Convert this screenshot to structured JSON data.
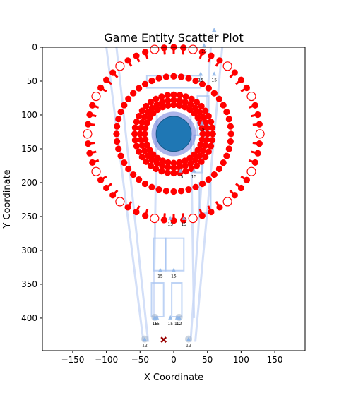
{
  "chart_data": {
    "type": "scatter",
    "title": "Game Entity Scatter Plot",
    "xlabel": "X Coordinate",
    "ylabel": "Y Coordinate",
    "xlim": [
      -195,
      195
    ],
    "ylim": [
      448,
      0
    ],
    "y_inverted": true,
    "xticks": [
      -150,
      -100,
      -50,
      0,
      50,
      100,
      150
    ],
    "yticks": [
      0,
      50,
      100,
      150,
      200,
      250,
      300,
      350,
      400
    ],
    "grid": false,
    "legend": "none",
    "colors": {
      "ring": "#ff0000",
      "center": "#1f77b4",
      "center_halo": "#4a5cd0",
      "path": "#c8d7f6",
      "box": "#a8c4f2",
      "marker": "#8fb6e8",
      "tree": "#9eb0c8",
      "cross": "#990000"
    },
    "center_entity": {
      "x": 0,
      "y": 128,
      "size": 26,
      "halo": 33
    },
    "dot_rings": [
      {
        "name": "outer-ring",
        "cx": 0,
        "cy": 128,
        "r": 128,
        "count": 56,
        "hollow_every": 4,
        "ticks": true
      },
      {
        "name": "middle-ring",
        "cx": 0,
        "cy": 128,
        "r": 85,
        "count": 48
      },
      {
        "name": "inner-ring-1",
        "cx": 0,
        "cy": 128,
        "r": 58,
        "count": 40
      },
      {
        "name": "inner-ring-2",
        "cx": 0,
        "cy": 128,
        "r": 50,
        "count": 36
      },
      {
        "name": "inner-ring-3",
        "cx": 0,
        "cy": 128,
        "r": 43,
        "count": 32
      }
    ],
    "paths": [
      {
        "points": [
          [
            -100,
            0
          ],
          [
            -45,
            435
          ]
        ]
      },
      {
        "points": [
          [
            -85,
            0
          ],
          [
            -38,
            435
          ]
        ]
      },
      {
        "points": [
          [
            55,
            0
          ],
          [
            25,
            435
          ]
        ]
      },
      {
        "points": [
          [
            72,
            0
          ],
          [
            32,
            435
          ]
        ]
      },
      {
        "points": [
          [
            -25,
            100
          ],
          [
            -30,
            400
          ]
        ]
      },
      {
        "points": [
          [
            25,
            100
          ],
          [
            30,
            400
          ]
        ]
      }
    ],
    "boxes": [
      {
        "x0": -33,
        "y0": 398,
        "x1": -15,
        "y1": 348
      },
      {
        "x0": -3,
        "y0": 398,
        "x1": 12,
        "y1": 348
      },
      {
        "x0": -30,
        "y0": 330,
        "x1": -12,
        "y1": 282
      },
      {
        "x0": -12,
        "y0": 330,
        "x1": 15,
        "y1": 282
      },
      {
        "x0": 38,
        "y0": 245,
        "x1": 55,
        "y1": 200
      },
      {
        "x0": 30,
        "y0": 185,
        "x1": 42,
        "y1": 130
      },
      {
        "x0": -40,
        "y0": 60,
        "x1": 40,
        "y1": 42
      },
      {
        "x0": 35,
        "y0": 130,
        "x1": 52,
        "y1": 72
      }
    ],
    "markers": [
      {
        "x": 40,
        "y": 40,
        "label": "15"
      },
      {
        "x": 60,
        "y": 40,
        "label": "15"
      },
      {
        "x": 42,
        "y": 113,
        "label": "15"
      },
      {
        "x": 10,
        "y": 183,
        "label": "15"
      },
      {
        "x": 30,
        "y": 183,
        "label": "15"
      },
      {
        "x": -5,
        "y": 253,
        "label": "15"
      },
      {
        "x": 15,
        "y": 253,
        "label": "15"
      },
      {
        "x": -20,
        "y": 330,
        "label": "15"
      },
      {
        "x": 0,
        "y": 330,
        "label": "15"
      },
      {
        "x": -25,
        "y": 400,
        "label": "15"
      },
      {
        "x": -5,
        "y": 400,
        "label": "15"
      },
      {
        "x": 5,
        "y": 400,
        "label": "12"
      },
      {
        "x": 60,
        "y": -25,
        "label": "15"
      },
      {
        "x": 45,
        "y": -2,
        "label": "15"
      }
    ],
    "trees": [
      {
        "x": -28,
        "y": 400,
        "label": "15"
      },
      {
        "x": 8,
        "y": 400,
        "label": "12"
      },
      {
        "x": -43,
        "y": 432,
        "label": "12"
      },
      {
        "x": 22,
        "y": 432,
        "label": "12"
      }
    ],
    "cross_marker": {
      "x": -15,
      "y": 432
    }
  }
}
